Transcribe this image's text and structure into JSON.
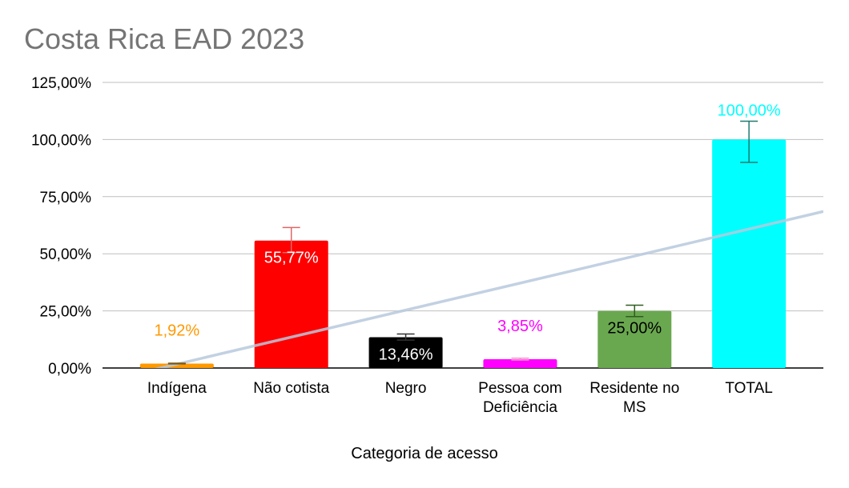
{
  "chart_data": {
    "type": "bar",
    "title": "Costa Rica EAD 2023",
    "xlabel": "Categoria de acesso",
    "ylabel": "",
    "ylim": [
      0,
      125
    ],
    "y_ticks": [
      "0,00%",
      "25,00%",
      "50,00%",
      "75,00%",
      "100,00%",
      "125,00%"
    ],
    "grid": true,
    "categories": [
      "Indígena",
      "Não cotista",
      "Negro",
      "Pessoa com Deficiência",
      "Residente no MS",
      "TOTAL"
    ],
    "category_lines": [
      [
        "Indígena"
      ],
      [
        "Não cotista"
      ],
      [
        "Negro"
      ],
      [
        "Pessoa com",
        "Deficiência"
      ],
      [
        "Residente no",
        "MS"
      ],
      [
        "TOTAL"
      ]
    ],
    "values": [
      1.92,
      55.77,
      13.46,
      3.85,
      25.0,
      100.0
    ],
    "data_labels": [
      "1,92%",
      "55,77%",
      "13,46%",
      "3,85%",
      "25,00%",
      "100,00%"
    ],
    "label_position": [
      "above",
      "inside",
      "inside",
      "above",
      "inside",
      "above"
    ],
    "error_bars": [
      {
        "low": 1.8,
        "high": 2.1
      },
      {
        "low": 50.5,
        "high": 61.5
      },
      {
        "low": 12.2,
        "high": 14.9
      },
      {
        "low": 3.5,
        "high": 4.3
      },
      {
        "low": 22.5,
        "high": 27.5
      },
      {
        "low": 90.0,
        "high": 108.0
      }
    ],
    "colors": {
      "bars": [
        "#ff9900",
        "#ff0000",
        "#000000",
        "#ff00ff",
        "#6aa84f",
        "#00ffff"
      ],
      "label_text": [
        "#ff9900",
        "#ffffff",
        "#ffffff",
        "#ff00ff",
        "#000000",
        "#00ffff"
      ],
      "error_bars": [
        "#7a5a1a",
        "#e06666",
        "#333333",
        "#f48fcf",
        "#2e5e1e",
        "#1f7a70"
      ],
      "trendline": "#b7c9dd",
      "grid": "#bfbfbf",
      "axis_text": "#000000",
      "title": "#757575"
    },
    "trendline": {
      "type": "linear",
      "start_value": -6.0,
      "end_value": 68.5
    }
  }
}
